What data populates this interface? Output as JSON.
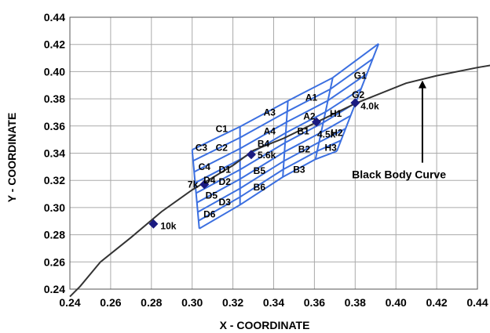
{
  "chart_data": {
    "type": "scatter",
    "title": "",
    "xlabel": "X - COORDINATE",
    "ylabel": "Y - COORDINATE",
    "xlim": [
      0.24,
      0.44
    ],
    "ylim": [
      0.24,
      0.44
    ],
    "x_ticks": [
      "0.24",
      "0.26",
      "0.28",
      "0.30",
      "0.32",
      "0.34",
      "0.36",
      "0.38",
      "0.40",
      "0.42",
      "0.44"
    ],
    "y_ticks": [
      "0.24",
      "0.26",
      "0.28",
      "0.30",
      "0.32",
      "0.34",
      "0.36",
      "0.38",
      "0.40",
      "0.42",
      "0.44"
    ],
    "grid": true,
    "colors": {
      "curve": "#333333",
      "bins": "#3b6fe0",
      "points": "#1a1a80"
    },
    "black_body_curve": {
      "name": "Black Body Curve",
      "x": [
        0.24,
        0.245,
        0.255,
        0.27,
        0.285,
        0.3,
        0.31,
        0.32,
        0.33,
        0.345,
        0.36,
        0.38,
        0.405,
        0.42,
        0.44,
        0.448
      ],
      "y": [
        0.2345,
        0.242,
        0.26,
        0.278,
        0.297,
        0.313,
        0.322,
        0.331,
        0.342,
        0.351,
        0.362,
        0.3765,
        0.3915,
        0.397,
        0.403,
        0.405
      ]
    },
    "cct_points": [
      {
        "label": "10k",
        "x": 0.281,
        "y": 0.288
      },
      {
        "label": "7k",
        "x": 0.306,
        "y": 0.317
      },
      {
        "label": "5.6k",
        "x": 0.329,
        "y": 0.339
      },
      {
        "label": "4.5k",
        "x": 0.361,
        "y": 0.363
      },
      {
        "label": "4.0k",
        "x": 0.38,
        "y": 0.377
      }
    ],
    "bin_grid": {
      "top_edge": [
        [
          0.3,
          0.3425
        ],
        [
          0.3235,
          0.3595
        ],
        [
          0.347,
          0.3785
        ],
        [
          0.369,
          0.3955
        ],
        [
          0.3915,
          0.4205
        ]
      ],
      "bottom_edge": [
        [
          0.3035,
          0.2845
        ],
        [
          0.3235,
          0.302
        ],
        [
          0.3445,
          0.3225
        ],
        [
          0.3605,
          0.3355
        ],
        [
          0.371,
          0.3415
        ]
      ],
      "row_fractions": [
        0,
        0.14,
        0.28,
        0.42,
        0.55,
        0.67,
        0.79,
        0.9,
        1.0
      ]
    },
    "bin_labels": [
      {
        "text": "G1",
        "x": 0.3825,
        "y": 0.397
      },
      {
        "text": "G2",
        "x": 0.3815,
        "y": 0.383
      },
      {
        "text": "A1",
        "x": 0.3585,
        "y": 0.381
      },
      {
        "text": "A3",
        "x": 0.338,
        "y": 0.37
      },
      {
        "text": "A2",
        "x": 0.3575,
        "y": 0.367
      },
      {
        "text": "H1",
        "x": 0.3705,
        "y": 0.369
      },
      {
        "text": "C1",
        "x": 0.3145,
        "y": 0.358
      },
      {
        "text": "A4",
        "x": 0.338,
        "y": 0.356
      },
      {
        "text": "B1",
        "x": 0.3545,
        "y": 0.356
      },
      {
        "text": "H2",
        "x": 0.371,
        "y": 0.355
      },
      {
        "text": "C3",
        "x": 0.3045,
        "y": 0.344
      },
      {
        "text": "C2",
        "x": 0.3145,
        "y": 0.344
      },
      {
        "text": "B4",
        "x": 0.335,
        "y": 0.347
      },
      {
        "text": "B2",
        "x": 0.355,
        "y": 0.343
      },
      {
        "text": "H3",
        "x": 0.368,
        "y": 0.344
      },
      {
        "text": "C4",
        "x": 0.306,
        "y": 0.33
      },
      {
        "text": "D1",
        "x": 0.316,
        "y": 0.328
      },
      {
        "text": "B5",
        "x": 0.333,
        "y": 0.327
      },
      {
        "text": "B3",
        "x": 0.3525,
        "y": 0.328
      },
      {
        "text": "D4",
        "x": 0.3085,
        "y": 0.32
      },
      {
        "text": "D2",
        "x": 0.316,
        "y": 0.319
      },
      {
        "text": "B6",
        "x": 0.333,
        "y": 0.315
      },
      {
        "text": "D5",
        "x": 0.3095,
        "y": 0.309
      },
      {
        "text": "D3",
        "x": 0.316,
        "y": 0.304
      },
      {
        "text": "D6",
        "x": 0.3085,
        "y": 0.295
      }
    ],
    "annotations": [
      {
        "text": "Black Body Curve",
        "x": 0.4015,
        "y": 0.3245,
        "arrow_to": [
          0.413,
          0.3935
        ],
        "arrow_from": [
          0.413,
          0.333
        ]
      }
    ]
  }
}
